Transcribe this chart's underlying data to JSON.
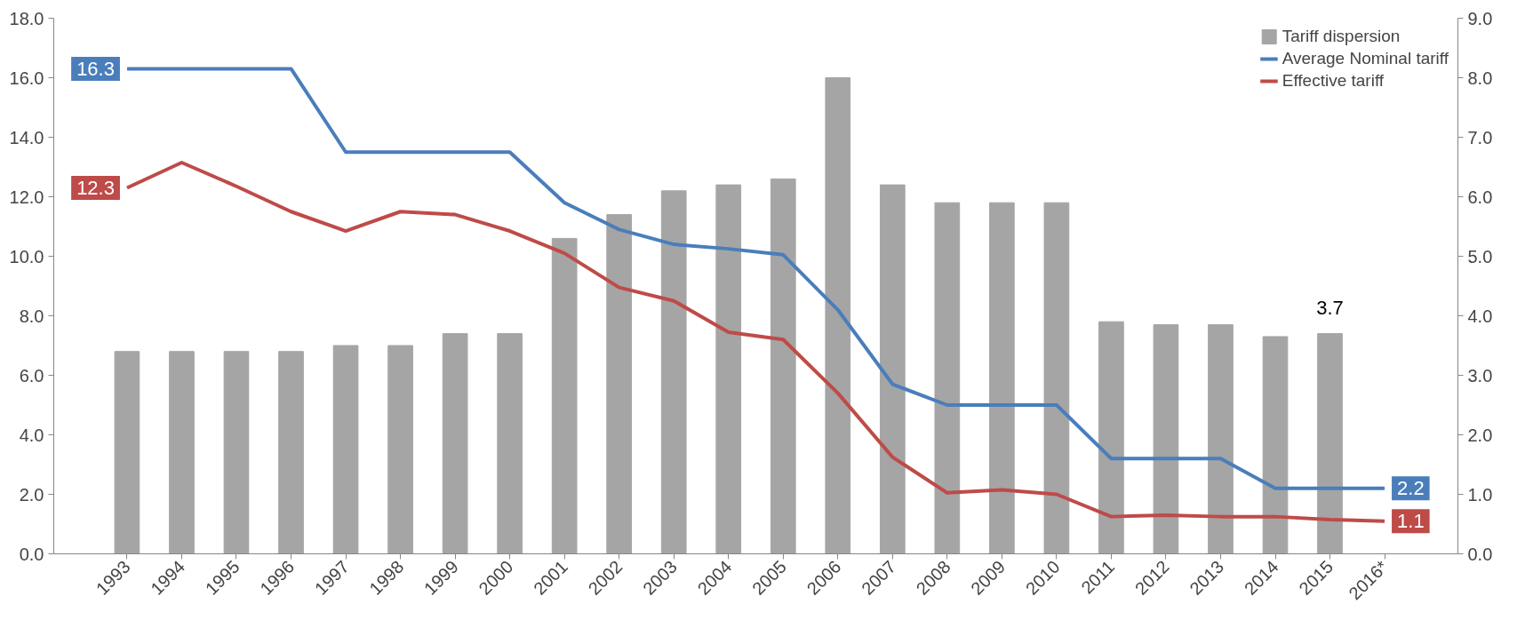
{
  "chart_data": {
    "type": "bar",
    "categories": [
      "1993",
      "1994",
      "1995",
      "1996",
      "1997",
      "1998",
      "1999",
      "2000",
      "2001",
      "2002",
      "2003",
      "2004",
      "2005",
      "2006",
      "2007",
      "2008",
      "2009",
      "2010",
      "2011",
      "2012",
      "2013",
      "2014",
      "2015",
      "2016*"
    ],
    "series": [
      {
        "name": "Tariff dispersion",
        "axis": "y2",
        "color": "#a5a5a5",
        "values": [
          3.4,
          3.4,
          3.4,
          3.4,
          3.5,
          3.5,
          3.7,
          3.7,
          5.3,
          5.7,
          6.1,
          6.2,
          6.3,
          8.0,
          6.2,
          5.9,
          5.9,
          5.9,
          3.9,
          3.85,
          3.85,
          3.65,
          3.7,
          null
        ],
        "value_labels": [
          null,
          null,
          null,
          null,
          null,
          null,
          null,
          null,
          null,
          null,
          null,
          null,
          null,
          null,
          null,
          null,
          null,
          null,
          null,
          null,
          null,
          null,
          "3.7",
          null
        ]
      },
      {
        "name": "Average Nominal tariff",
        "type": "line",
        "color": "#4a7ebb",
        "values": [
          16.3,
          16.3,
          16.3,
          16.3,
          13.5,
          13.5,
          13.5,
          13.5,
          11.8,
          10.9,
          10.4,
          10.25,
          10.05,
          8.2,
          5.7,
          5.0,
          5.0,
          5.0,
          3.2,
          3.2,
          3.2,
          2.2,
          2.2,
          2.2
        ],
        "value_labels": [
          "16.3",
          null,
          null,
          null,
          null,
          null,
          null,
          null,
          null,
          null,
          null,
          null,
          null,
          null,
          null,
          null,
          null,
          null,
          null,
          null,
          null,
          null,
          null,
          "2.2"
        ]
      },
      {
        "name": "Effective tariff",
        "type": "line",
        "color": "#be4b48",
        "values": [
          12.3,
          13.15,
          12.35,
          11.5,
          10.85,
          11.5,
          11.4,
          10.85,
          10.1,
          8.95,
          8.5,
          7.45,
          7.2,
          5.4,
          3.25,
          2.05,
          2.15,
          2.0,
          1.25,
          1.3,
          1.25,
          1.25,
          1.15,
          1.1
        ],
        "value_labels": [
          "12.3",
          null,
          null,
          null,
          null,
          null,
          null,
          null,
          null,
          null,
          null,
          null,
          null,
          null,
          null,
          null,
          null,
          null,
          null,
          null,
          null,
          null,
          null,
          "1.1"
        ]
      }
    ],
    "ylim": [
      0,
      18
    ],
    "yticks": [
      {
        "value": 0,
        "label": "0.0"
      },
      {
        "value": 2,
        "label": "2.0"
      },
      {
        "value": 4,
        "label": "4.0"
      },
      {
        "value": 6,
        "label": "6.0"
      },
      {
        "value": 8,
        "label": "8.0"
      },
      {
        "value": 10,
        "label": "10.0"
      },
      {
        "value": 12,
        "label": "12.0"
      },
      {
        "value": 14,
        "label": "14.0"
      },
      {
        "value": 16,
        "label": "16.0"
      },
      {
        "value": 18,
        "label": "18.0"
      }
    ],
    "y2lim": [
      0,
      9
    ],
    "y2ticks": [
      {
        "value": 0,
        "label": "0.0"
      },
      {
        "value": 1,
        "label": "1.0"
      },
      {
        "value": 2,
        "label": "2.0"
      },
      {
        "value": 3,
        "label": "3.0"
      },
      {
        "value": 4,
        "label": "4.0"
      },
      {
        "value": 5,
        "label": "5.0"
      },
      {
        "value": 6,
        "label": "6.0"
      },
      {
        "value": 7,
        "label": "7.0"
      },
      {
        "value": 8,
        "label": "8.0"
      },
      {
        "value": 9,
        "label": "9.0"
      }
    ],
    "grid": false,
    "legend": "top right"
  }
}
